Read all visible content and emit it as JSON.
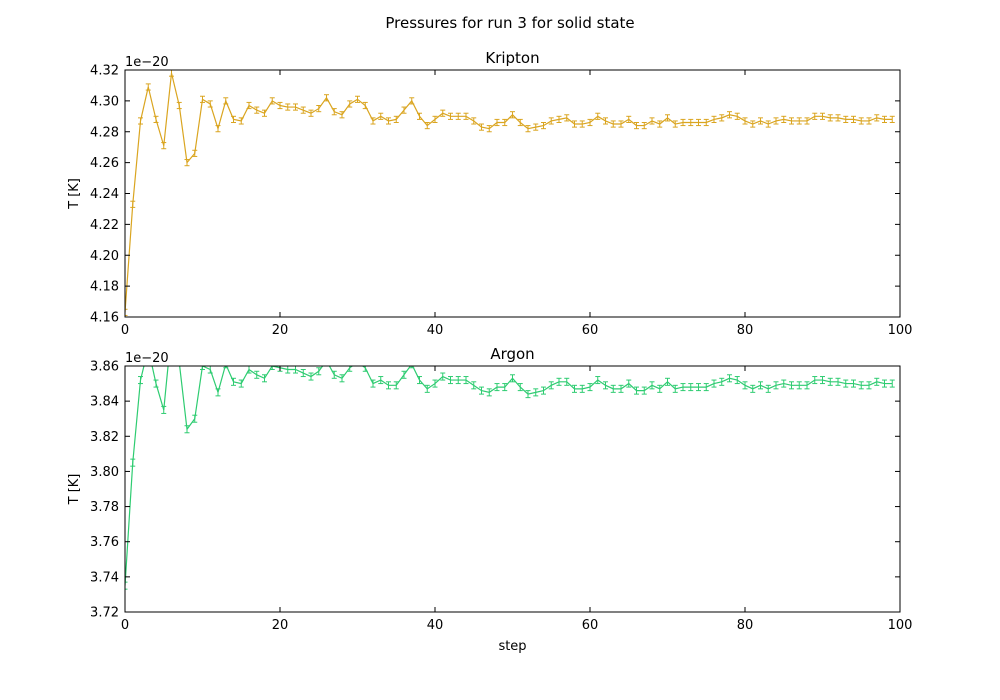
{
  "suptitle": "Pressures for run 3 for solid state",
  "chart_data": [
    {
      "type": "line",
      "title": "Kripton",
      "xlabel": "",
      "ylabel": "T [K]",
      "offset_text": "1e−20",
      "color": "#DAA520",
      "xlim": [
        0,
        100
      ],
      "ylim": [
        4.16,
        4.32
      ],
      "xticks": [
        "0",
        "20",
        "40",
        "60",
        "80",
        "100"
      ],
      "yticks": [
        "4.16",
        "4.18",
        "4.20",
        "4.22",
        "4.24",
        "4.26",
        "4.28",
        "4.30",
        "4.32"
      ],
      "error": 0.002,
      "x": [
        0,
        1,
        2,
        3,
        4,
        5,
        6,
        7,
        8,
        9,
        10,
        11,
        12,
        13,
        14,
        15,
        16,
        17,
        18,
        19,
        20,
        21,
        22,
        23,
        24,
        25,
        26,
        27,
        28,
        29,
        30,
        31,
        32,
        33,
        34,
        35,
        36,
        37,
        38,
        39,
        40,
        41,
        42,
        43,
        44,
        45,
        46,
        47,
        48,
        49,
        50,
        51,
        52,
        53,
        54,
        55,
        56,
        57,
        58,
        59,
        60,
        61,
        62,
        63,
        64,
        65,
        66,
        67,
        68,
        69,
        70,
        71,
        72,
        73,
        74,
        75,
        76,
        77,
        78,
        79,
        80,
        81,
        82,
        83,
        84,
        85,
        86,
        87,
        88,
        89,
        90,
        91,
        92,
        93,
        94,
        95,
        96,
        97,
        98,
        99
      ],
      "values": [
        4.163,
        4.233,
        4.287,
        4.309,
        4.288,
        4.271,
        4.318,
        4.297,
        4.26,
        4.266,
        4.301,
        4.298,
        4.282,
        4.3,
        4.288,
        4.287,
        4.297,
        4.294,
        4.292,
        4.3,
        4.297,
        4.296,
        4.296,
        4.294,
        4.292,
        4.295,
        4.302,
        4.293,
        4.291,
        4.298,
        4.301,
        4.297,
        4.287,
        4.29,
        4.287,
        4.288,
        4.294,
        4.3,
        4.29,
        4.284,
        4.288,
        4.292,
        4.29,
        4.29,
        4.29,
        4.287,
        4.283,
        4.282,
        4.286,
        4.286,
        4.291,
        4.286,
        4.282,
        4.283,
        4.284,
        4.287,
        4.288,
        4.289,
        4.285,
        4.285,
        4.286,
        4.29,
        4.287,
        4.285,
        4.285,
        4.288,
        4.284,
        4.284,
        4.287,
        4.285,
        4.289,
        4.285,
        4.286,
        4.286,
        4.286,
        4.286,
        4.288,
        4.289,
        4.291,
        4.29,
        4.287,
        4.285,
        4.287,
        4.285,
        4.287,
        4.288,
        4.287,
        4.287,
        4.287,
        4.29,
        4.29,
        4.289,
        4.289,
        4.288,
        4.288,
        4.287,
        4.287,
        4.289,
        4.288,
        4.288
      ]
    },
    {
      "type": "line",
      "title": "Argon",
      "xlabel": "step",
      "ylabel": "T [K]",
      "offset_text": "1e−20",
      "color": "#2ECC71",
      "xlim": [
        0,
        100
      ],
      "ylim": [
        3.72,
        3.86
      ],
      "xticks": [
        "0",
        "20",
        "40",
        "60",
        "80",
        "100"
      ],
      "yticks": [
        "3.72",
        "3.74",
        "3.76",
        "3.78",
        "3.80",
        "3.82",
        "3.84",
        "3.86"
      ],
      "error": 0.002,
      "x": [
        0,
        1,
        2,
        3,
        4,
        5,
        6,
        7,
        8,
        9,
        10,
        11,
        12,
        13,
        14,
        15,
        16,
        17,
        18,
        19,
        20,
        21,
        22,
        23,
        24,
        25,
        26,
        27,
        28,
        29,
        30,
        31,
        32,
        33,
        34,
        35,
        36,
        37,
        38,
        39,
        40,
        41,
        42,
        43,
        44,
        45,
        46,
        47,
        48,
        49,
        50,
        51,
        52,
        53,
        54,
        55,
        56,
        57,
        58,
        59,
        60,
        61,
        62,
        63,
        64,
        65,
        66,
        67,
        68,
        69,
        70,
        71,
        72,
        73,
        74,
        75,
        76,
        77,
        78,
        79,
        80,
        81,
        82,
        83,
        84,
        85,
        86,
        87,
        88,
        89,
        90,
        91,
        92,
        93,
        94,
        95,
        96,
        97,
        98,
        99
      ],
      "values": [
        3.735,
        3.805,
        3.852,
        3.87,
        3.85,
        3.835,
        3.88,
        3.862,
        3.824,
        3.83,
        3.86,
        3.858,
        3.845,
        3.861,
        3.851,
        3.85,
        3.858,
        3.855,
        3.853,
        3.86,
        3.859,
        3.858,
        3.858,
        3.856,
        3.854,
        3.857,
        3.863,
        3.855,
        3.853,
        3.859,
        3.862,
        3.859,
        3.85,
        3.852,
        3.849,
        3.849,
        3.855,
        3.861,
        3.852,
        3.847,
        3.85,
        3.854,
        3.852,
        3.852,
        3.852,
        3.849,
        3.846,
        3.845,
        3.848,
        3.848,
        3.853,
        3.848,
        3.844,
        3.845,
        3.846,
        3.849,
        3.851,
        3.851,
        3.847,
        3.847,
        3.848,
        3.852,
        3.849,
        3.847,
        3.847,
        3.85,
        3.846,
        3.846,
        3.849,
        3.847,
        3.851,
        3.847,
        3.848,
        3.848,
        3.848,
        3.848,
        3.85,
        3.851,
        3.853,
        3.852,
        3.849,
        3.847,
        3.849,
        3.847,
        3.849,
        3.85,
        3.849,
        3.849,
        3.849,
        3.852,
        3.852,
        3.851,
        3.851,
        3.85,
        3.85,
        3.849,
        3.849,
        3.851,
        3.85,
        3.85
      ]
    }
  ]
}
